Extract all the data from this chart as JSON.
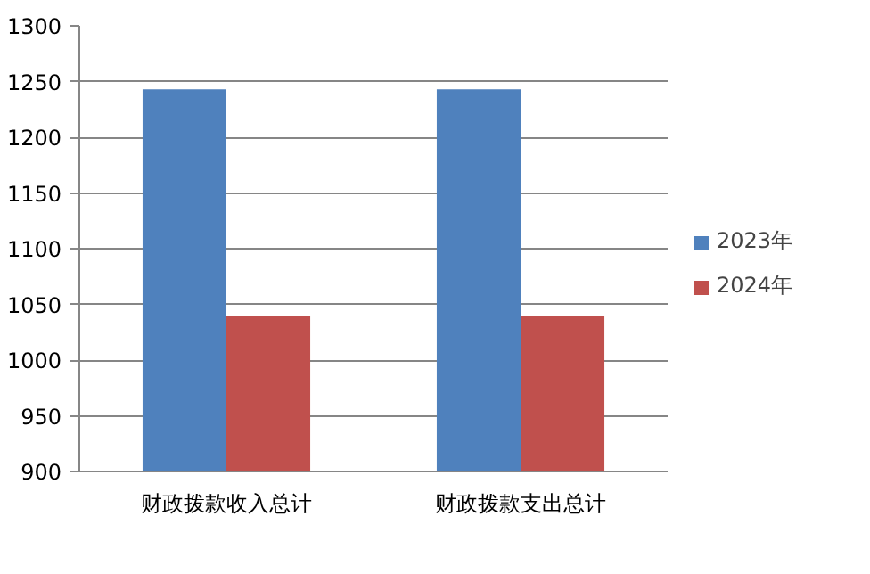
{
  "chart_data": {
    "type": "bar",
    "categories": [
      "财政拨款收入总计",
      "财政拨款支出总计"
    ],
    "series": [
      {
        "name": "2023年",
        "color": "#4f81bd",
        "values": [
          1243,
          1243
        ]
      },
      {
        "name": "2024年",
        "color": "#c0504d",
        "values": [
          1040,
          1040
        ]
      }
    ],
    "ylim": [
      900,
      1300
    ],
    "yticks": [
      900,
      950,
      1000,
      1050,
      1100,
      1150,
      1200,
      1250,
      1300
    ],
    "grid": "y",
    "legend": "right"
  }
}
